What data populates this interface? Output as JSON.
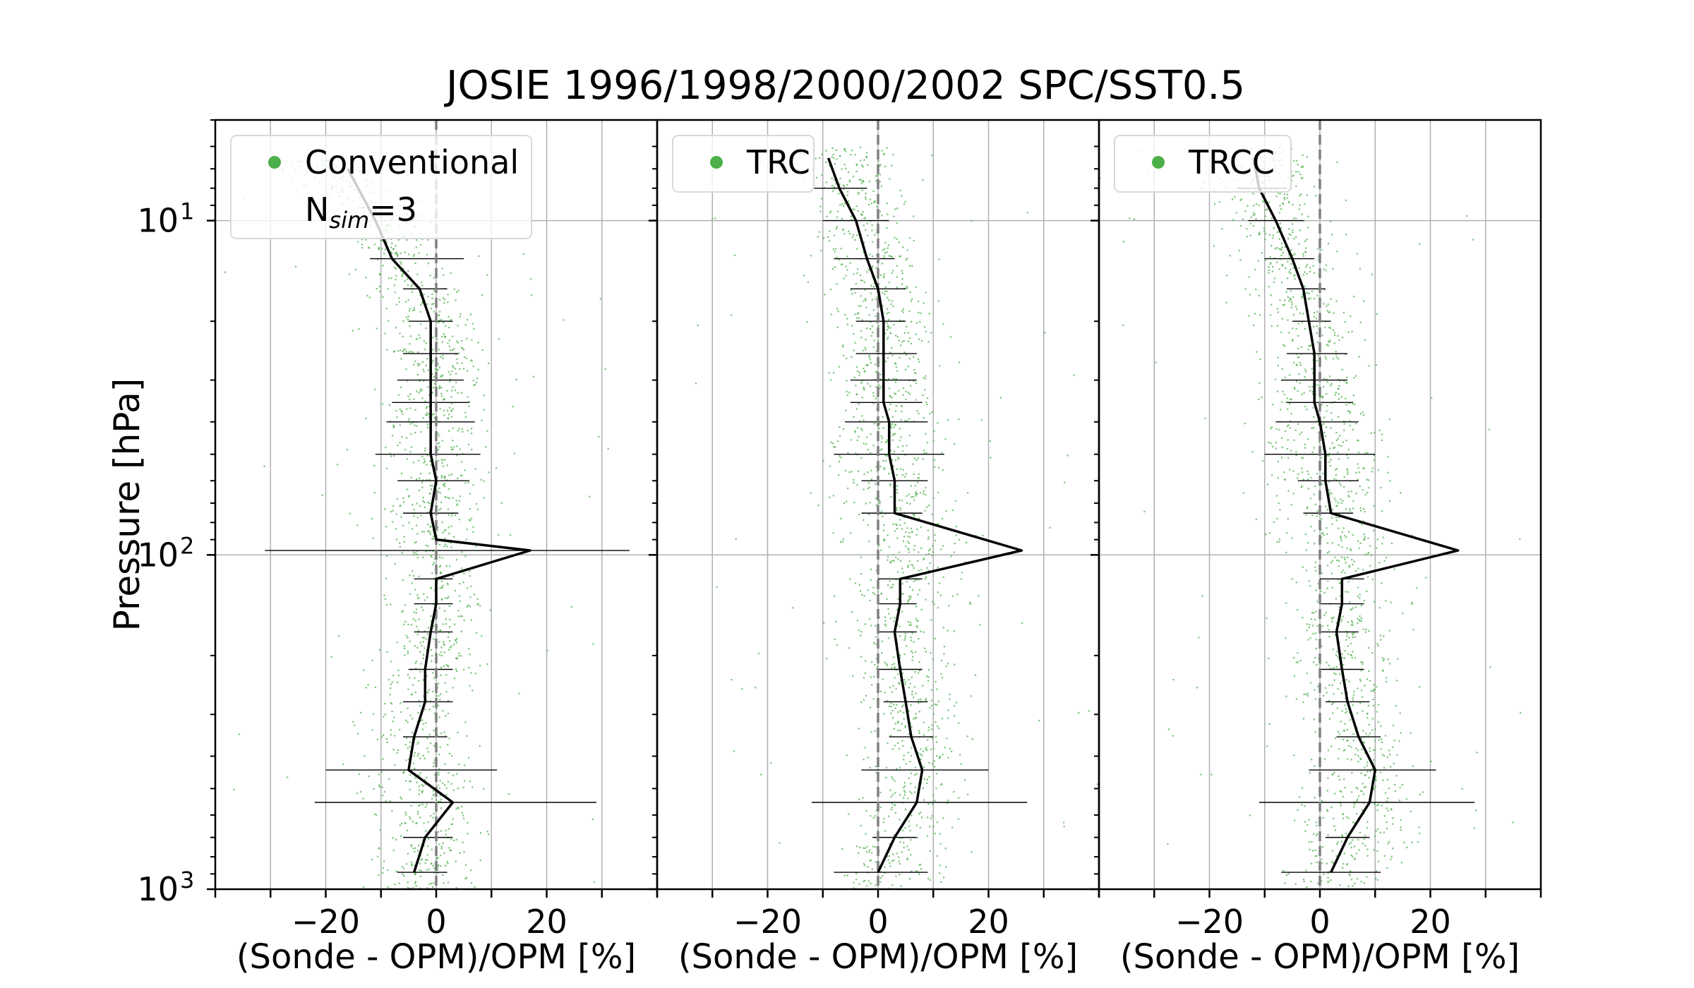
{
  "figure": {
    "title": "JOSIE 1996/1998/2000/2002 SPC/SST0.5",
    "ylabel": "Pressure [hPa]",
    "colors": {
      "points": "#4daf4a",
      "mean": "#000000",
      "zero_line": "#808080",
      "grid": "#b0b0b0"
    }
  },
  "chart_data": [
    {
      "type": "scatter",
      "panel": "Conventional",
      "legend": [
        "Conventional",
        "N",
        "sim",
        "=3"
      ],
      "xlabel": "(Sonde - OPM)/OPM [%]",
      "xlim": [
        -40,
        40
      ],
      "ylim": [
        1000,
        5
      ],
      "yscale": "log",
      "y_inverted": true,
      "grid": true,
      "legend_position": "upper-left",
      "x_ticks": [
        "-20",
        "0",
        "20"
      ],
      "y_ticks": [
        "10",
        "10",
        "10"
      ],
      "y_tick_exponents": [
        "1",
        "2",
        "3"
      ],
      "series": [
        {
          "kind": "mean-profile",
          "points": [
            [
              -16,
              7
            ],
            [
              -11,
              10
            ],
            [
              -8,
              13
            ],
            [
              -3,
              16
            ],
            [
              -1,
              20
            ],
            [
              -1,
              25
            ],
            [
              -1,
              30
            ],
            [
              -1,
              35
            ],
            [
              -1,
              40
            ],
            [
              -1,
              50
            ],
            [
              0,
              60
            ],
            [
              -1,
              75
            ],
            [
              0,
              90
            ],
            [
              17,
              97
            ],
            [
              0,
              118
            ],
            [
              0,
              140
            ],
            [
              -1,
              170
            ],
            [
              -2,
              220
            ],
            [
              -2,
              275
            ],
            [
              -4,
              350
            ],
            [
              -5,
              440
            ],
            [
              3,
              550
            ],
            [
              -2,
              700
            ],
            [
              -4,
              890
            ]
          ]
        },
        {
          "kind": "std-bars",
          "bars": [
            {
              "p": 13,
              "lo": -12,
              "hi": 5
            },
            {
              "p": 16,
              "lo": -6,
              "hi": 2
            },
            {
              "p": 20,
              "lo": -5,
              "hi": 3
            },
            {
              "p": 25,
              "lo": -6,
              "hi": 4
            },
            {
              "p": 30,
              "lo": -7,
              "hi": 5
            },
            {
              "p": 35,
              "lo": -8,
              "hi": 6
            },
            {
              "p": 40,
              "lo": -9,
              "hi": 7
            },
            {
              "p": 50,
              "lo": -11,
              "hi": 8
            },
            {
              "p": 60,
              "lo": -7,
              "hi": 6
            },
            {
              "p": 75,
              "lo": -6,
              "hi": 4
            },
            {
              "p": 97,
              "lo": -31,
              "hi": 35
            },
            {
              "p": 118,
              "lo": -4,
              "hi": 3
            },
            {
              "p": 140,
              "lo": -4,
              "hi": 3
            },
            {
              "p": 170,
              "lo": -4,
              "hi": 3
            },
            {
              "p": 220,
              "lo": -5,
              "hi": 3
            },
            {
              "p": 275,
              "lo": -6,
              "hi": 3
            },
            {
              "p": 350,
              "lo": -6,
              "hi": 2
            },
            {
              "p": 440,
              "lo": -20,
              "hi": 11
            },
            {
              "p": 550,
              "lo": -22,
              "hi": 29
            },
            {
              "p": 700,
              "lo": -6,
              "hi": 3
            },
            {
              "p": 890,
              "lo": -7,
              "hi": 2
            }
          ]
        },
        {
          "kind": "scatter-cloud",
          "segments": [
            [
              6.5,
              -20
            ],
            [
              8,
              -16
            ],
            [
              10,
              -11
            ],
            [
              13,
              -8
            ],
            [
              16,
              -3
            ],
            [
              20,
              -1
            ],
            [
              30,
              -1
            ],
            [
              40,
              -1
            ],
            [
              50,
              -1
            ],
            [
              60,
              0
            ],
            [
              75,
              -1
            ],
            [
              88,
              0
            ],
            [
              105,
              -1
            ],
            [
              140,
              0
            ],
            [
              200,
              -1
            ],
            [
              300,
              -3
            ],
            [
              400,
              -4
            ],
            [
              500,
              -2
            ],
            [
              700,
              -2
            ],
            [
              1000,
              -4
            ]
          ],
          "spread": 4.5
        }
      ]
    },
    {
      "type": "scatter",
      "panel": "TRC",
      "legend": [
        "TRC"
      ],
      "xlabel": "(Sonde - OPM)/OPM [%]",
      "xlim": [
        -40,
        40
      ],
      "ylim": [
        1000,
        5
      ],
      "yscale": "log",
      "y_inverted": true,
      "grid": true,
      "legend_position": "upper-left",
      "x_ticks": [
        "-20",
        "0",
        "20"
      ],
      "series": [
        {
          "kind": "mean-profile",
          "points": [
            [
              -9,
              6.5
            ],
            [
              -7,
              8
            ],
            [
              -4,
              10
            ],
            [
              -2,
              13
            ],
            [
              0,
              16
            ],
            [
              1,
              20
            ],
            [
              1,
              25
            ],
            [
              1,
              30
            ],
            [
              1,
              35
            ],
            [
              2,
              40
            ],
            [
              2,
              50
            ],
            [
              3,
              60
            ],
            [
              3,
              75
            ],
            [
              26,
              97
            ],
            [
              4,
              118
            ],
            [
              4,
              140
            ],
            [
              3,
              170
            ],
            [
              4,
              220
            ],
            [
              5,
              275
            ],
            [
              6,
              350
            ],
            [
              8,
              440
            ],
            [
              7,
              550
            ],
            [
              3,
              700
            ],
            [
              0,
              890
            ]
          ]
        },
        {
          "kind": "std-bars",
          "bars": [
            {
              "p": 8,
              "lo": -12,
              "hi": -2
            },
            {
              "p": 10,
              "lo": -10,
              "hi": 2
            },
            {
              "p": 13,
              "lo": -8,
              "hi": 3
            },
            {
              "p": 16,
              "lo": -5,
              "hi": 5
            },
            {
              "p": 20,
              "lo": -4,
              "hi": 5
            },
            {
              "p": 25,
              "lo": -4,
              "hi": 7
            },
            {
              "p": 30,
              "lo": -5,
              "hi": 7
            },
            {
              "p": 35,
              "lo": -5,
              "hi": 8
            },
            {
              "p": 40,
              "lo": -6,
              "hi": 9
            },
            {
              "p": 50,
              "lo": -8,
              "hi": 12
            },
            {
              "p": 60,
              "lo": -3,
              "hi": 9
            },
            {
              "p": 75,
              "lo": -3,
              "hi": 8
            },
            {
              "p": 118,
              "lo": 0,
              "hi": 8
            },
            {
              "p": 140,
              "lo": 0,
              "hi": 7
            },
            {
              "p": 170,
              "lo": 0,
              "hi": 7
            },
            {
              "p": 220,
              "lo": 0,
              "hi": 8
            },
            {
              "p": 275,
              "lo": 1,
              "hi": 9
            },
            {
              "p": 350,
              "lo": 2,
              "hi": 10
            },
            {
              "p": 440,
              "lo": -3,
              "hi": 20
            },
            {
              "p": 550,
              "lo": -12,
              "hi": 27
            },
            {
              "p": 700,
              "lo": -1,
              "hi": 7
            },
            {
              "p": 890,
              "lo": -8,
              "hi": 9
            }
          ]
        },
        {
          "kind": "scatter-cloud",
          "segments": [
            [
              6,
              -7
            ],
            [
              8,
              -5
            ],
            [
              10,
              -3
            ],
            [
              13,
              -1
            ],
            [
              16,
              0
            ],
            [
              20,
              1
            ],
            [
              30,
              1
            ],
            [
              40,
              2
            ],
            [
              50,
              1
            ],
            [
              60,
              3
            ],
            [
              75,
              3
            ],
            [
              90,
              4
            ],
            [
              110,
              4
            ],
            [
              150,
              4
            ],
            [
              200,
              4
            ],
            [
              300,
              6
            ],
            [
              400,
              7
            ],
            [
              500,
              6
            ],
            [
              700,
              4
            ],
            [
              1000,
              1
            ]
          ],
          "spread": 5
        }
      ]
    },
    {
      "type": "scatter",
      "panel": "TRCC",
      "legend": [
        "TRCC"
      ],
      "xlabel": "(Sonde - OPM)/OPM [%]",
      "xlim": [
        -40,
        40
      ],
      "ylim": [
        1000,
        5
      ],
      "yscale": "log",
      "y_inverted": true,
      "grid": true,
      "legend_position": "upper-left",
      "x_ticks": [
        "-20",
        "0",
        "20"
      ],
      "series": [
        {
          "kind": "mean-profile",
          "points": [
            [
              -12,
              6.5
            ],
            [
              -11,
              8
            ],
            [
              -8,
              10
            ],
            [
              -5,
              13
            ],
            [
              -3,
              16
            ],
            [
              -2,
              20
            ],
            [
              -1,
              25
            ],
            [
              -1,
              30
            ],
            [
              -1,
              35
            ],
            [
              0,
              40
            ],
            [
              1,
              50
            ],
            [
              1,
              60
            ],
            [
              2,
              75
            ],
            [
              25,
              97
            ],
            [
              4,
              118
            ],
            [
              4,
              140
            ],
            [
              3,
              170
            ],
            [
              4,
              220
            ],
            [
              5,
              275
            ],
            [
              7,
              350
            ],
            [
              10,
              440
            ],
            [
              9,
              550
            ],
            [
              5,
              700
            ],
            [
              2,
              890
            ]
          ]
        },
        {
          "kind": "std-bars",
          "bars": [
            {
              "p": 8,
              "lo": -15,
              "hi": -6
            },
            {
              "p": 10,
              "lo": -13,
              "hi": -3
            },
            {
              "p": 13,
              "lo": -10,
              "hi": -1
            },
            {
              "p": 16,
              "lo": -6,
              "hi": 1
            },
            {
              "p": 20,
              "lo": -5,
              "hi": 2
            },
            {
              "p": 25,
              "lo": -6,
              "hi": 5
            },
            {
              "p": 30,
              "lo": -7,
              "hi": 5
            },
            {
              "p": 35,
              "lo": -6,
              "hi": 6
            },
            {
              "p": 40,
              "lo": -8,
              "hi": 7
            },
            {
              "p": 50,
              "lo": -10,
              "hi": 10
            },
            {
              "p": 60,
              "lo": -4,
              "hi": 7
            },
            {
              "p": 75,
              "lo": -3,
              "hi": 6
            },
            {
              "p": 118,
              "lo": 0,
              "hi": 8
            },
            {
              "p": 140,
              "lo": 0,
              "hi": 8
            },
            {
              "p": 170,
              "lo": 0,
              "hi": 7
            },
            {
              "p": 220,
              "lo": 0,
              "hi": 8
            },
            {
              "p": 275,
              "lo": 1,
              "hi": 9
            },
            {
              "p": 350,
              "lo": 3,
              "hi": 11
            },
            {
              "p": 440,
              "lo": -2,
              "hi": 21
            },
            {
              "p": 550,
              "lo": -11,
              "hi": 28
            },
            {
              "p": 700,
              "lo": 1,
              "hi": 9
            },
            {
              "p": 890,
              "lo": -7,
              "hi": 11
            }
          ]
        },
        {
          "kind": "scatter-cloud",
          "segments": [
            [
              6,
              -11
            ],
            [
              8,
              -10
            ],
            [
              10,
              -8
            ],
            [
              13,
              -5
            ],
            [
              16,
              -3
            ],
            [
              20,
              -2
            ],
            [
              30,
              -1
            ],
            [
              40,
              0
            ],
            [
              50,
              1
            ],
            [
              60,
              1
            ],
            [
              75,
              2
            ],
            [
              90,
              3
            ],
            [
              110,
              4
            ],
            [
              150,
              4
            ],
            [
              200,
              4
            ],
            [
              300,
              6
            ],
            [
              400,
              8
            ],
            [
              500,
              8
            ],
            [
              700,
              5
            ],
            [
              1000,
              2
            ]
          ],
          "spread": 5
        }
      ]
    }
  ]
}
